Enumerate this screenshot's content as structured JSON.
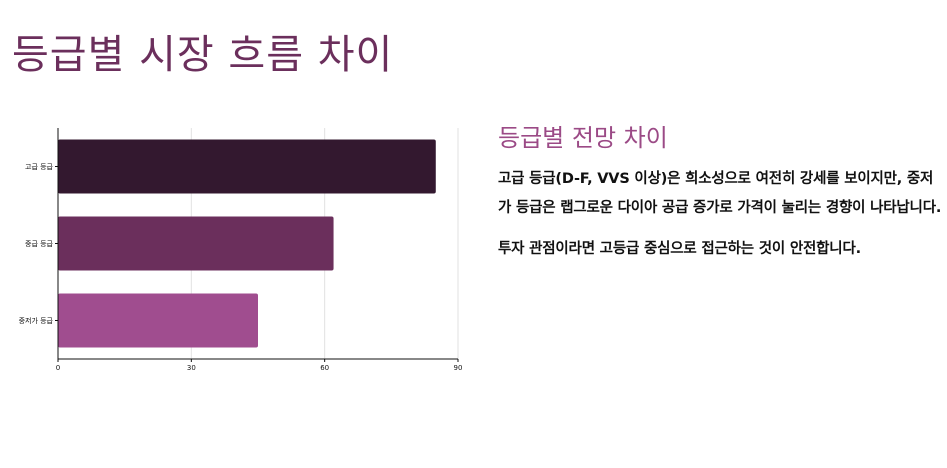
{
  "page": {
    "title": "등급별 시장 흐름 차이",
    "subtitle": "등급별 전망 차이",
    "paragraphs": [
      "고급 등급(D-F, VVS 이상)은 희소성으로 여전히 강세를 보이지만, 중저가 등급은 랩그로운 다이아 공급 증가로 가격이 눌리는 경향이 나타납니다.",
      "투자 관점이라면 고등급 중심으로 접근하는 것이 안전합니다."
    ]
  },
  "chart_data": {
    "type": "bar",
    "orientation": "horizontal",
    "categories": [
      "고급 등급",
      "중급 등급",
      "중저가 등급"
    ],
    "values": [
      85,
      62,
      45
    ],
    "colors": [
      "#33182f",
      "#6b2f5c",
      "#a04d8f"
    ],
    "xlim": [
      0,
      90
    ],
    "xticks": [
      0,
      30,
      60,
      90
    ],
    "grid": true,
    "title": "",
    "xlabel": "",
    "ylabel": ""
  }
}
